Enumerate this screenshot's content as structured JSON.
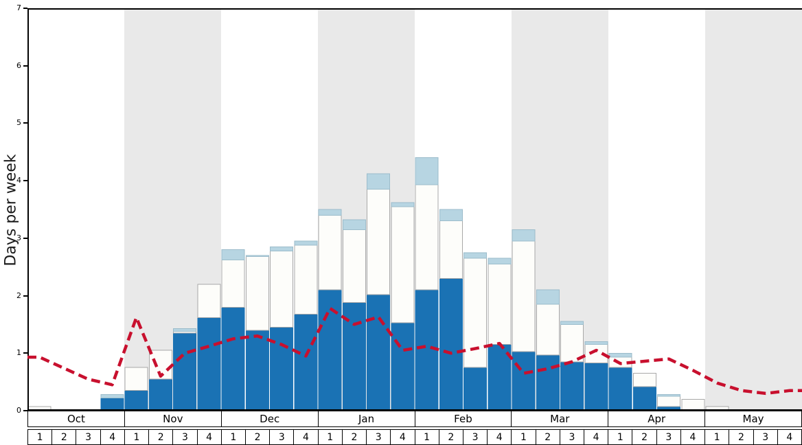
{
  "chart_data": {
    "type": "bar+line",
    "title": "",
    "ylabel": "Days per week",
    "ylim": [
      0,
      7
    ],
    "yticks": [
      0,
      1,
      2,
      3,
      4,
      5,
      6,
      7
    ],
    "grid": "off",
    "legend": "none",
    "months": [
      "Oct",
      "Nov",
      "Dec",
      "Jan",
      "Feb",
      "Mar",
      "Apr",
      "May"
    ],
    "week_labels": [
      "1",
      "2",
      "3",
      "4"
    ],
    "shaded_month_indices": [
      1,
      3,
      5,
      7
    ],
    "colors": {
      "band": "#e9e9e9",
      "frame": "#000000",
      "dark_blue": "#1a72b4",
      "white_bar": "#fdfdfa",
      "light_blue": "#b7d5e2",
      "red_line": "#c8102e"
    },
    "series": [
      {
        "name": "dark-blue-bars",
        "color": "#1a72b4",
        "stroke": "#1a72b4",
        "values": [
          0,
          0,
          0,
          0.22,
          0.35,
          0.55,
          1.35,
          1.62,
          1.8,
          1.4,
          1.45,
          1.68,
          2.1,
          1.88,
          2.02,
          1.53,
          2.1,
          2.3,
          0.75,
          1.15,
          1.03,
          0.97,
          0.85,
          0.83,
          0.75,
          0.42,
          0.07,
          0,
          0,
          0,
          0,
          0
        ]
      },
      {
        "name": "white-bars",
        "color": "#fdfdfa",
        "stroke": "#a8a8a8",
        "values": [
          0.07,
          0,
          0,
          0,
          0.4,
          0.5,
          0.03,
          0.58,
          0.82,
          1.28,
          1.33,
          1.2,
          1.3,
          1.27,
          1.83,
          2.02,
          1.83,
          1.0,
          1.9,
          1.4,
          1.92,
          0.88,
          0.65,
          0.32,
          0.18,
          0.23,
          0.18,
          0.2,
          0.07,
          0,
          0,
          0
        ]
      },
      {
        "name": "light-blue-bars",
        "color": "#b7d5e2",
        "stroke": "#9bbccb",
        "values": [
          0,
          0,
          0,
          0.06,
          0,
          0,
          0.05,
          0,
          0.18,
          0.02,
          0.07,
          0.07,
          0.1,
          0.17,
          0.27,
          0.07,
          0.47,
          0.2,
          0.1,
          0.1,
          0.2,
          0.25,
          0.05,
          0.05,
          0.07,
          0,
          0.03,
          0,
          0,
          0,
          0,
          0
        ]
      }
    ],
    "line": {
      "name": "red-dashed-line",
      "color": "#c8102e",
      "style": "dashed",
      "values": [
        0.93,
        0.74,
        0.55,
        0.45,
        1.62,
        0.6,
        1.0,
        1.12,
        1.25,
        1.3,
        1.15,
        0.95,
        1.78,
        1.5,
        1.63,
        1.05,
        1.12,
        1.0,
        1.08,
        1.17,
        0.65,
        0.73,
        0.85,
        1.05,
        0.82,
        0.86,
        0.9,
        0.7,
        0.48,
        0.35,
        0.3,
        0.35
      ]
    }
  }
}
